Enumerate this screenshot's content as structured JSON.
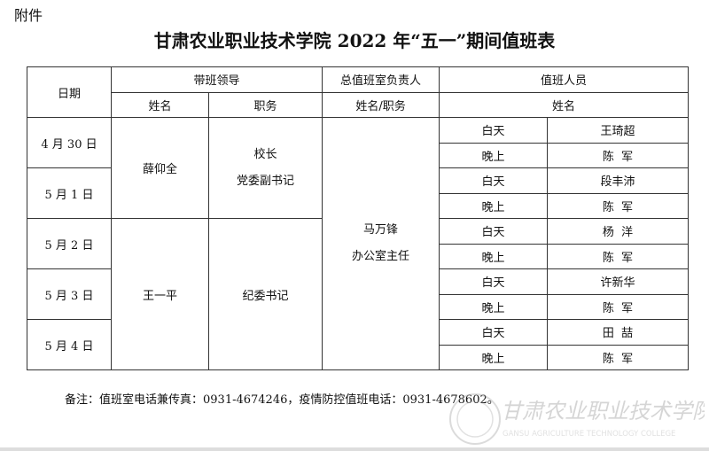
{
  "attachment_label": "附件",
  "title": "甘肃农业职业技术学院 2022 年“五一”期间值班表",
  "headers": {
    "date": "日期",
    "leader": "带班领导",
    "chief": "总值班室负责人",
    "staff": "值班人员",
    "leader_name": "姓名",
    "leader_post": "职务",
    "chief_name_post": "姓名/职务",
    "staff_name": "姓名"
  },
  "leaders": [
    {
      "name": "薛仰全",
      "post_lines": [
        "校长",
        "党委副书记"
      ]
    },
    {
      "name": "王一平",
      "post_lines": [
        "纪委书记"
      ]
    }
  ],
  "chief": {
    "name": "马万锋",
    "post": "办公室主任"
  },
  "dates": [
    "4 月 30 日",
    "5 月 1 日",
    "5 月 2 日",
    "5 月 3 日",
    "5 月 4 日"
  ],
  "shifts": [
    {
      "period": "白天",
      "name": "王琦超"
    },
    {
      "period": "晚上",
      "name": "陈  军"
    },
    {
      "period": "白天",
      "name": "段丰沛"
    },
    {
      "period": "晚上",
      "name": "陈  军"
    },
    {
      "period": "白天",
      "name": "杨  洋"
    },
    {
      "period": "晚上",
      "name": "陈  军"
    },
    {
      "period": "白天",
      "name": "许新华"
    },
    {
      "period": "晚上",
      "name": "陈  军"
    },
    {
      "period": "白天",
      "name": "田  喆"
    },
    {
      "period": "晚上",
      "name": "陈  军"
    }
  ],
  "note": "备注：值班室电话兼传真：0931-4674246，疫情防控值班电话：0931-4678602。",
  "watermark": {
    "cn": "甘肃农业职业技术学院",
    "en": "GANSU AGRICULTURE TECHNOLOGY COLLEGE"
  }
}
